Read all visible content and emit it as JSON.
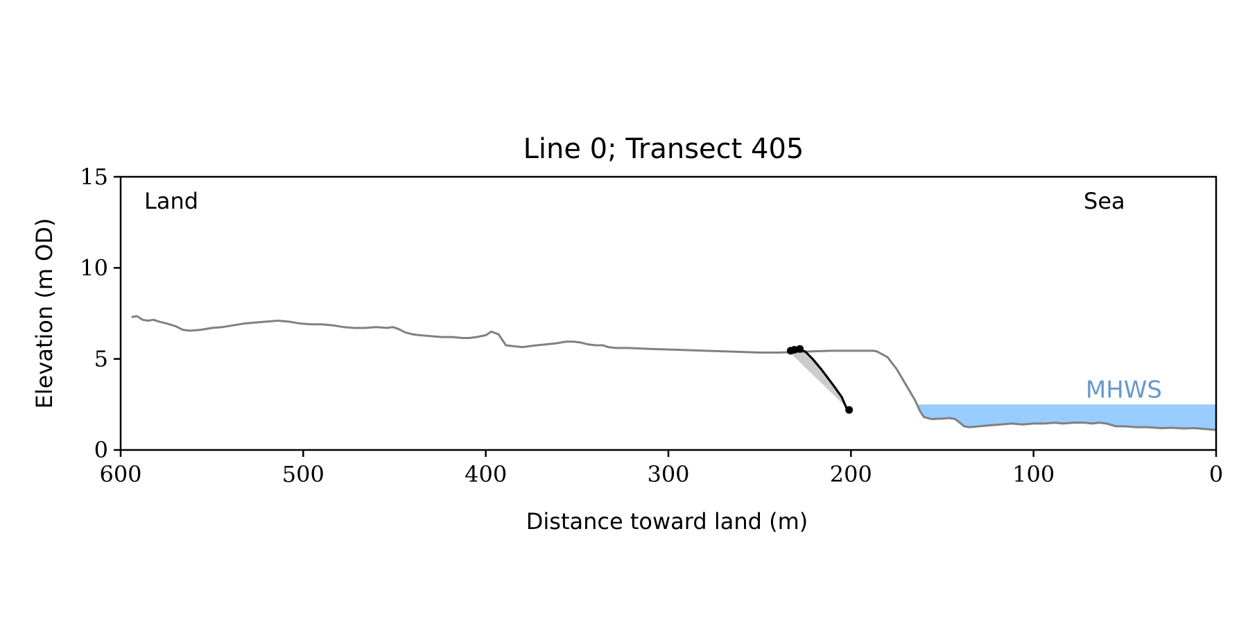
{
  "chart_data": {
    "type": "line",
    "title": "Line 0; Transect 405",
    "xlabel": "Distance toward land (m)",
    "ylabel": "Elevation (m OD)",
    "xlim": [
      600,
      0
    ],
    "ylim": [
      0,
      15
    ],
    "x_ticks": [
      600,
      500,
      400,
      300,
      200,
      100,
      0
    ],
    "y_ticks": [
      0,
      5,
      10,
      15
    ],
    "grid": false,
    "annotations": {
      "left": "Land",
      "right": "Sea",
      "water_label": "MHWS"
    },
    "mhws": {
      "elevation": 2.5,
      "x_start": 200,
      "x_end": 0,
      "color": "#99ccff",
      "label_color": "#6699cc"
    },
    "series": [
      {
        "role": "profile",
        "color": "#808080",
        "points": [
          [
            594,
            7.3
          ],
          [
            591,
            7.35
          ],
          [
            588,
            7.15
          ],
          [
            585,
            7.1
          ],
          [
            582,
            7.15
          ],
          [
            579,
            7.05
          ],
          [
            575,
            6.95
          ],
          [
            570,
            6.8
          ],
          [
            566,
            6.6
          ],
          [
            562,
            6.55
          ],
          [
            556,
            6.6
          ],
          [
            550,
            6.7
          ],
          [
            544,
            6.75
          ],
          [
            538,
            6.85
          ],
          [
            532,
            6.95
          ],
          [
            526,
            7.0
          ],
          [
            520,
            7.05
          ],
          [
            514,
            7.1
          ],
          [
            508,
            7.05
          ],
          [
            502,
            6.95
          ],
          [
            496,
            6.9
          ],
          [
            490,
            6.9
          ],
          [
            484,
            6.85
          ],
          [
            478,
            6.75
          ],
          [
            472,
            6.7
          ],
          [
            466,
            6.7
          ],
          [
            460,
            6.75
          ],
          [
            454,
            6.7
          ],
          [
            451,
            6.75
          ],
          [
            448,
            6.65
          ],
          [
            444,
            6.45
          ],
          [
            440,
            6.35
          ],
          [
            436,
            6.3
          ],
          [
            430,
            6.25
          ],
          [
            424,
            6.2
          ],
          [
            418,
            6.2
          ],
          [
            413,
            6.15
          ],
          [
            409,
            6.15
          ],
          [
            405,
            6.2
          ],
          [
            400,
            6.3
          ],
          [
            397,
            6.5
          ],
          [
            393,
            6.35
          ],
          [
            389,
            5.75
          ],
          [
            385,
            5.7
          ],
          [
            380,
            5.65
          ],
          [
            376,
            5.7
          ],
          [
            372,
            5.75
          ],
          [
            367,
            5.8
          ],
          [
            362,
            5.85
          ],
          [
            356,
            5.95
          ],
          [
            352,
            5.95
          ],
          [
            348,
            5.9
          ],
          [
            344,
            5.8
          ],
          [
            340,
            5.75
          ],
          [
            336,
            5.75
          ],
          [
            333,
            5.65
          ],
          [
            329,
            5.6
          ],
          [
            322,
            5.6
          ],
          [
            310,
            5.55
          ],
          [
            295,
            5.5
          ],
          [
            280,
            5.45
          ],
          [
            265,
            5.4
          ],
          [
            250,
            5.35
          ],
          [
            240,
            5.35
          ],
          [
            230,
            5.38
          ],
          [
            220,
            5.42
          ],
          [
            210,
            5.45
          ],
          [
            200,
            5.45
          ],
          [
            194,
            5.45
          ],
          [
            188,
            5.45
          ],
          [
            186,
            5.42
          ],
          [
            180,
            5.1
          ],
          [
            175,
            4.45
          ],
          [
            170,
            3.6
          ],
          [
            165,
            2.75
          ],
          [
            162,
            2.1
          ],
          [
            160,
            1.8
          ],
          [
            156,
            1.7
          ],
          [
            150,
            1.72
          ],
          [
            146,
            1.75
          ],
          [
            143,
            1.7
          ],
          [
            141,
            1.55
          ],
          [
            138,
            1.3
          ],
          [
            135,
            1.25
          ],
          [
            130,
            1.3
          ],
          [
            124,
            1.35
          ],
          [
            118,
            1.4
          ],
          [
            112,
            1.45
          ],
          [
            106,
            1.4
          ],
          [
            100,
            1.45
          ],
          [
            94,
            1.45
          ],
          [
            88,
            1.5
          ],
          [
            84,
            1.45
          ],
          [
            78,
            1.5
          ],
          [
            72,
            1.5
          ],
          [
            68,
            1.45
          ],
          [
            64,
            1.5
          ],
          [
            60,
            1.45
          ],
          [
            55,
            1.3
          ],
          [
            50,
            1.3
          ],
          [
            44,
            1.25
          ],
          [
            38,
            1.25
          ],
          [
            30,
            1.2
          ],
          [
            24,
            1.22
          ],
          [
            18,
            1.18
          ],
          [
            12,
            1.2
          ],
          [
            6,
            1.15
          ],
          [
            0,
            1.1
          ]
        ]
      },
      {
        "role": "cliff",
        "color": "#000000",
        "points": [
          [
            234,
            5.4
          ],
          [
            232,
            5.5
          ],
          [
            229,
            5.55
          ],
          [
            225,
            5.4
          ],
          [
            221,
            5.0
          ],
          [
            216,
            4.4
          ],
          [
            210,
            3.6
          ],
          [
            205,
            2.9
          ],
          [
            202,
            2.2
          ]
        ]
      }
    ],
    "markers": [
      [
        233,
        5.45
      ],
      [
        231,
        5.5
      ],
      [
        228,
        5.55
      ],
      [
        201,
        2.2
      ]
    ],
    "cliff_shading": {
      "color": "#cccccc",
      "from": [
        234,
        5.4
      ],
      "to": [
        201,
        2.2
      ]
    }
  }
}
